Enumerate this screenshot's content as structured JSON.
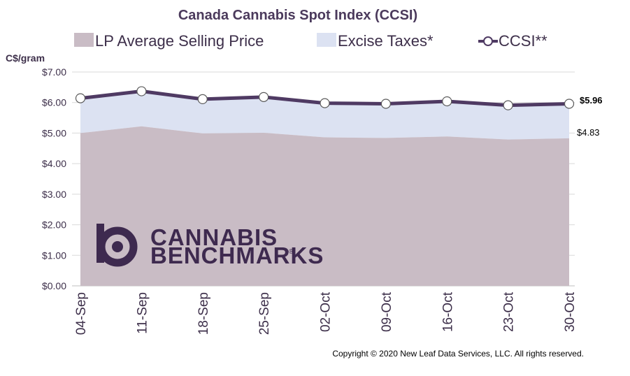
{
  "chart_data": {
    "type": "area",
    "title": "Canada Cannabis Spot Index (CCSI)",
    "ylabel": "C$/gram",
    "ylim": [
      0,
      7
    ],
    "y_ticks": [
      "$0.00",
      "$1.00",
      "$2.00",
      "$3.00",
      "$4.00",
      "$5.00",
      "$6.00",
      "$7.00"
    ],
    "y_tick_values": [
      0,
      1,
      2,
      3,
      4,
      5,
      6,
      7
    ],
    "categories": [
      "04-Sep",
      "11-Sep",
      "18-Sep",
      "25-Sep",
      "02-Oct",
      "09-Oct",
      "16-Oct",
      "23-Oct",
      "30-Oct"
    ],
    "grid": true,
    "legend_position": "top",
    "series": [
      {
        "name": "LP Average Selling Price",
        "kind": "area",
        "color": "#c9bcc5",
        "values": [
          5.0,
          5.22,
          4.99,
          5.01,
          4.86,
          4.84,
          4.89,
          4.79,
          4.83
        ]
      },
      {
        "name": "Excise Taxes*",
        "kind": "stacked-area",
        "color": "#dce2f2",
        "values": [
          1.14,
          1.15,
          1.12,
          1.17,
          1.12,
          1.12,
          1.15,
          1.12,
          1.13
        ]
      },
      {
        "name": "CCSI**",
        "kind": "line",
        "color": "#4f3a63",
        "values": [
          6.14,
          6.37,
          6.11,
          6.18,
          5.98,
          5.96,
          6.04,
          5.91,
          5.96
        ]
      }
    ],
    "end_labels": {
      "ccsi": "$5.96",
      "lp": "$4.83"
    }
  },
  "logo": {
    "line1": "CANNABIS",
    "line2": "BENCHMARKS",
    "mark": "®"
  },
  "copyright": "Copyright © 2020 New Leaf Data Services, LLC. All rights reserved."
}
